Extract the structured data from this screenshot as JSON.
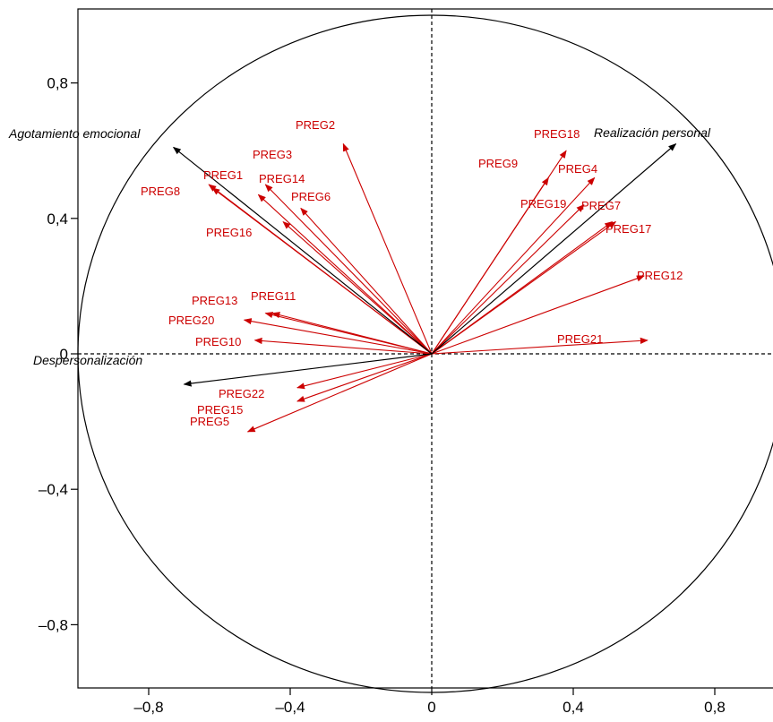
{
  "chart_data": {
    "type": "scatter",
    "subtype": "correlation-circle",
    "title": "",
    "xlabel": "",
    "ylabel": "",
    "xlim": [
      -1.0,
      1.0
    ],
    "ylim": [
      -1.0,
      1.0
    ],
    "x_ticks": [
      {
        "value": -0.8,
        "label": "–0,8"
      },
      {
        "value": -0.4,
        "label": "–0,4"
      },
      {
        "value": 0,
        "label": "0"
      },
      {
        "value": 0.4,
        "label": "0,4"
      },
      {
        "value": 0.8,
        "label": "0,8"
      }
    ],
    "y_ticks": [
      {
        "value": 0.8,
        "label": "0,8"
      },
      {
        "value": 0.4,
        "label": "0,4"
      },
      {
        "value": 0,
        "label": "0"
      },
      {
        "value": -0.4,
        "label": "–0,4"
      },
      {
        "value": -0.8,
        "label": "–0,8"
      }
    ],
    "unit_circle": true,
    "grid": false,
    "colors": {
      "variables": "#cc0000",
      "dimensions": "#000000",
      "axes": "#000000"
    },
    "dimensions": [
      {
        "name": "Agotamiento emocional",
        "x": -0.73,
        "y": 0.61
      },
      {
        "name": "Realización personal",
        "x": 0.69,
        "y": 0.62
      },
      {
        "name": "Despersonalización",
        "x": -0.7,
        "y": -0.09
      }
    ],
    "variables": [
      {
        "name": "PREG1",
        "x": -0.62,
        "y": 0.49
      },
      {
        "name": "PREG2",
        "x": -0.25,
        "y": 0.62
      },
      {
        "name": "PREG3",
        "x": -0.49,
        "y": 0.47
      },
      {
        "name": "PREG4",
        "x": 0.46,
        "y": 0.52
      },
      {
        "name": "PREG5",
        "x": -0.52,
        "y": -0.23
      },
      {
        "name": "PREG6",
        "x": -0.37,
        "y": 0.43
      },
      {
        "name": "PREG7",
        "x": 0.51,
        "y": 0.39
      },
      {
        "name": "PREG8",
        "x": -0.63,
        "y": 0.5
      },
      {
        "name": "PREG9",
        "x": 0.33,
        "y": 0.52
      },
      {
        "name": "PREG10",
        "x": -0.5,
        "y": 0.04
      },
      {
        "name": "PREG11",
        "x": -0.45,
        "y": 0.12
      },
      {
        "name": "PREG12",
        "x": 0.6,
        "y": 0.23
      },
      {
        "name": "PREG13",
        "x": -0.47,
        "y": 0.12
      },
      {
        "name": "PREG14",
        "x": -0.47,
        "y": 0.5
      },
      {
        "name": "PREG15",
        "x": -0.38,
        "y": -0.14
      },
      {
        "name": "PREG16",
        "x": -0.42,
        "y": 0.39
      },
      {
        "name": "PREG17",
        "x": 0.52,
        "y": 0.39
      },
      {
        "name": "PREG18",
        "x": 0.38,
        "y": 0.6
      },
      {
        "name": "PREG19",
        "x": 0.43,
        "y": 0.44
      },
      {
        "name": "PREG20",
        "x": -0.53,
        "y": 0.1
      },
      {
        "name": "PREG21",
        "x": 0.61,
        "y": 0.04
      },
      {
        "name": "PREG22",
        "x": -0.38,
        "y": -0.1
      }
    ]
  }
}
